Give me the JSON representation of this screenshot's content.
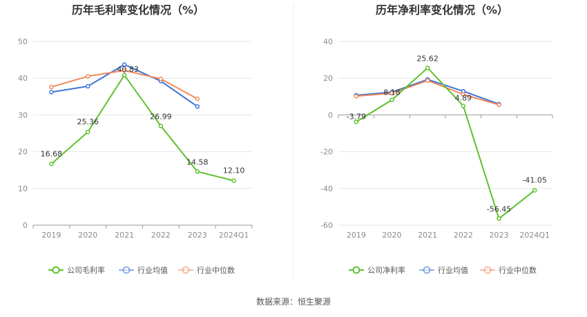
{
  "source_text": "数据来源：恒生聚源",
  "colors": {
    "company": "#5cc22c",
    "avg": "#3d74d8",
    "median": "#f08a5d",
    "grid": "#e6e6e6",
    "axis": "#bbbbbb",
    "divider": "#eeeeee"
  },
  "chart_data": [
    {
      "type": "line",
      "title": "历年毛利率变化情况（%）",
      "categories": [
        "2019",
        "2020",
        "2021",
        "2022",
        "2023",
        "2024Q1"
      ],
      "ylim": [
        0,
        50
      ],
      "yticks": [
        0,
        10,
        20,
        30,
        40,
        50
      ],
      "grid": true,
      "legend_position": "bottom",
      "series": [
        {
          "name": "公司毛利率",
          "key": "company",
          "values": [
            16.68,
            25.36,
            40.83,
            26.99,
            14.58,
            12.1
          ],
          "labels": [
            "16.68",
            "25.36",
            "40.83",
            "26.99",
            "14.58",
            "12.10"
          ]
        },
        {
          "name": "行业均值",
          "key": "avg",
          "values": [
            36.2,
            37.8,
            43.7,
            39.2,
            32.3,
            null
          ]
        },
        {
          "name": "行业中位数",
          "key": "median",
          "values": [
            37.6,
            40.5,
            42.1,
            39.8,
            34.4,
            null
          ]
        }
      ]
    },
    {
      "type": "line",
      "title": "历年净利率变化情况（%）",
      "categories": [
        "2019",
        "2020",
        "2021",
        "2022",
        "2023",
        "2024Q1"
      ],
      "ylim": [
        -60,
        40
      ],
      "yticks": [
        -60,
        -40,
        -20,
        0,
        20,
        40
      ],
      "grid": true,
      "legend_position": "bottom",
      "series": [
        {
          "name": "公司净利率",
          "key": "company",
          "values": [
            -3.79,
            8.18,
            25.62,
            4.89,
            -56.45,
            -41.05
          ],
          "labels": [
            "-3.79",
            "8.18",
            "25.62",
            "4.89",
            "-56.45",
            "-41.05"
          ]
        },
        {
          "name": "行业均值",
          "key": "avg",
          "values": [
            10.7,
            12.4,
            19.3,
            12.9,
            5.9,
            null
          ]
        },
        {
          "name": "行业中位数",
          "key": "median",
          "values": [
            10.2,
            11.8,
            18.7,
            11.2,
            5.5,
            null
          ]
        }
      ]
    }
  ]
}
